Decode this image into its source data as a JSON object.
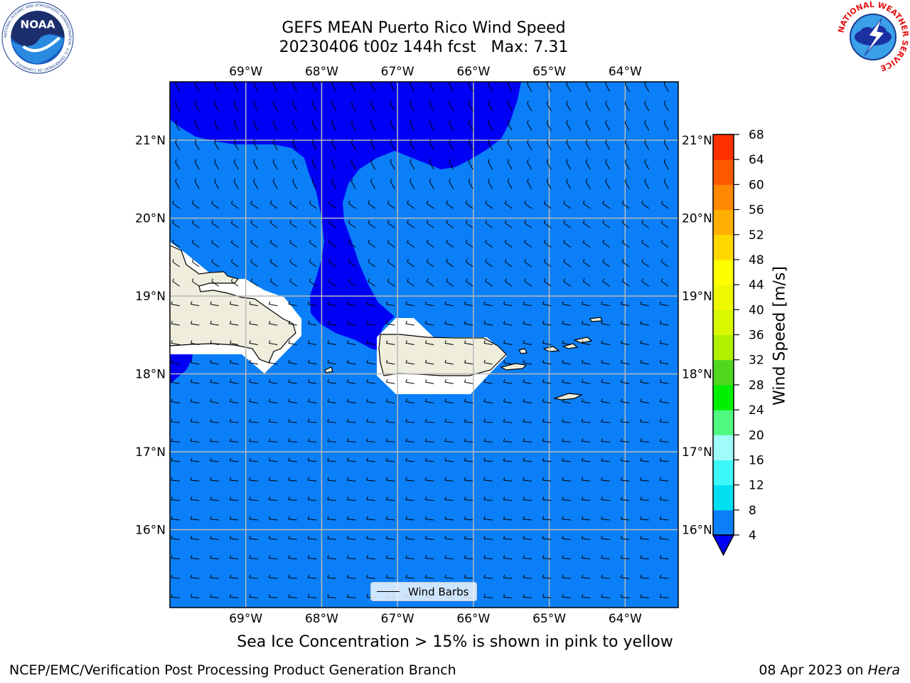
{
  "header": {
    "title_line1": "GEFS MEAN Puerto Rico Wind Speed",
    "title_line2": "20230406 t00z 144h fcst   Max: 7.31"
  },
  "logos": {
    "left": "noaa-logo",
    "right": "nws-logo",
    "left_text": "NOAA",
    "left_ring_text": "NATIONAL OCEANIC AND ATMOSPHERIC ADMINISTRATION · U.S. DEPARTMENT OF COMMERCE",
    "right_ring_text": "NATIONAL WEATHER SERVICE"
  },
  "map": {
    "lon_labels": [
      "69°W",
      "68°W",
      "67°W",
      "66°W",
      "65°W",
      "64°W"
    ],
    "lat_labels": [
      "21°N",
      "20°N",
      "19°N",
      "18°N",
      "17°N",
      "16°N"
    ],
    "lon_range": [
      -70.0,
      -63.3
    ],
    "lat_range": [
      15.0,
      21.75
    ],
    "ocean_color": "#0a7ff7",
    "strong_wind_color": "#0000f5",
    "land_color": "#efeedc",
    "grid": true,
    "legend_label": "Wind Barbs"
  },
  "colorbar": {
    "label": "Wind Speed [m/s]",
    "ticks": [
      "68",
      "64",
      "60",
      "56",
      "52",
      "48",
      "44",
      "40",
      "36",
      "32",
      "28",
      "24",
      "20",
      "16",
      "12",
      "8",
      "4"
    ],
    "colors": [
      "#0a7ff7",
      "#00e0f0",
      "#3cf8f8",
      "#a0fcf8",
      "#50f880",
      "#00f000",
      "#50d820",
      "#b0f000",
      "#d8f800",
      "#f0f800",
      "#ffff00",
      "#ffd800",
      "#ffb000",
      "#ff8800",
      "#ff5800",
      "#ff3000",
      "#ff0000"
    ],
    "under_color": "#0000f5",
    "extend": "min"
  },
  "subtitle": "Sea Ice Concentration > 15% is shown in pink to yellow",
  "footer": {
    "left": "NCEP/EMC/Verification Post Processing Product Generation Branch",
    "right_date": "08 Apr 2023 on",
    "right_host": "Hera"
  }
}
